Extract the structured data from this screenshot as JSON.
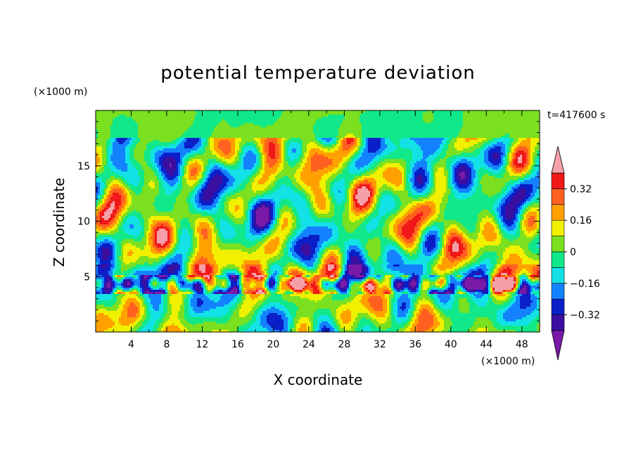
{
  "chart_data": {
    "type": "heatmap",
    "title": "potential temperature deviation",
    "time_label": "t=417600 s",
    "xlabel": "X coordinate",
    "ylabel": "Z coordinate",
    "x_unit": "(×1000 m)",
    "y_unit": "(×1000 m)",
    "xlim": [
      0,
      50
    ],
    "ylim": [
      0,
      20
    ],
    "x_ticks": [
      4,
      8,
      12,
      16,
      20,
      24,
      28,
      32,
      36,
      40,
      44,
      48
    ],
    "y_ticks": [
      5,
      10,
      15
    ],
    "colorbar": {
      "levels": [
        -0.4,
        -0.32,
        -0.24,
        -0.16,
        -0.08,
        0,
        0.08,
        0.16,
        0.24,
        0.32,
        0.4
      ],
      "labels": [
        {
          "value": -0.32,
          "text": "−0.32"
        },
        {
          "value": -0.16,
          "text": "−0.16"
        },
        {
          "value": 0,
          "text": "0"
        },
        {
          "value": 0.16,
          "text": "0.16"
        },
        {
          "value": 0.32,
          "text": "0.32"
        }
      ],
      "colors": [
        "#7a1aa8",
        "#3a0fa0",
        "#0a1fc8",
        "#1482ff",
        "#12e2e6",
        "#10e88a",
        "#7ae020",
        "#f0f000",
        "#ffa000",
        "#ff6020",
        "#f01818",
        "#f5a0a8"
      ],
      "extend": "both"
    }
  }
}
